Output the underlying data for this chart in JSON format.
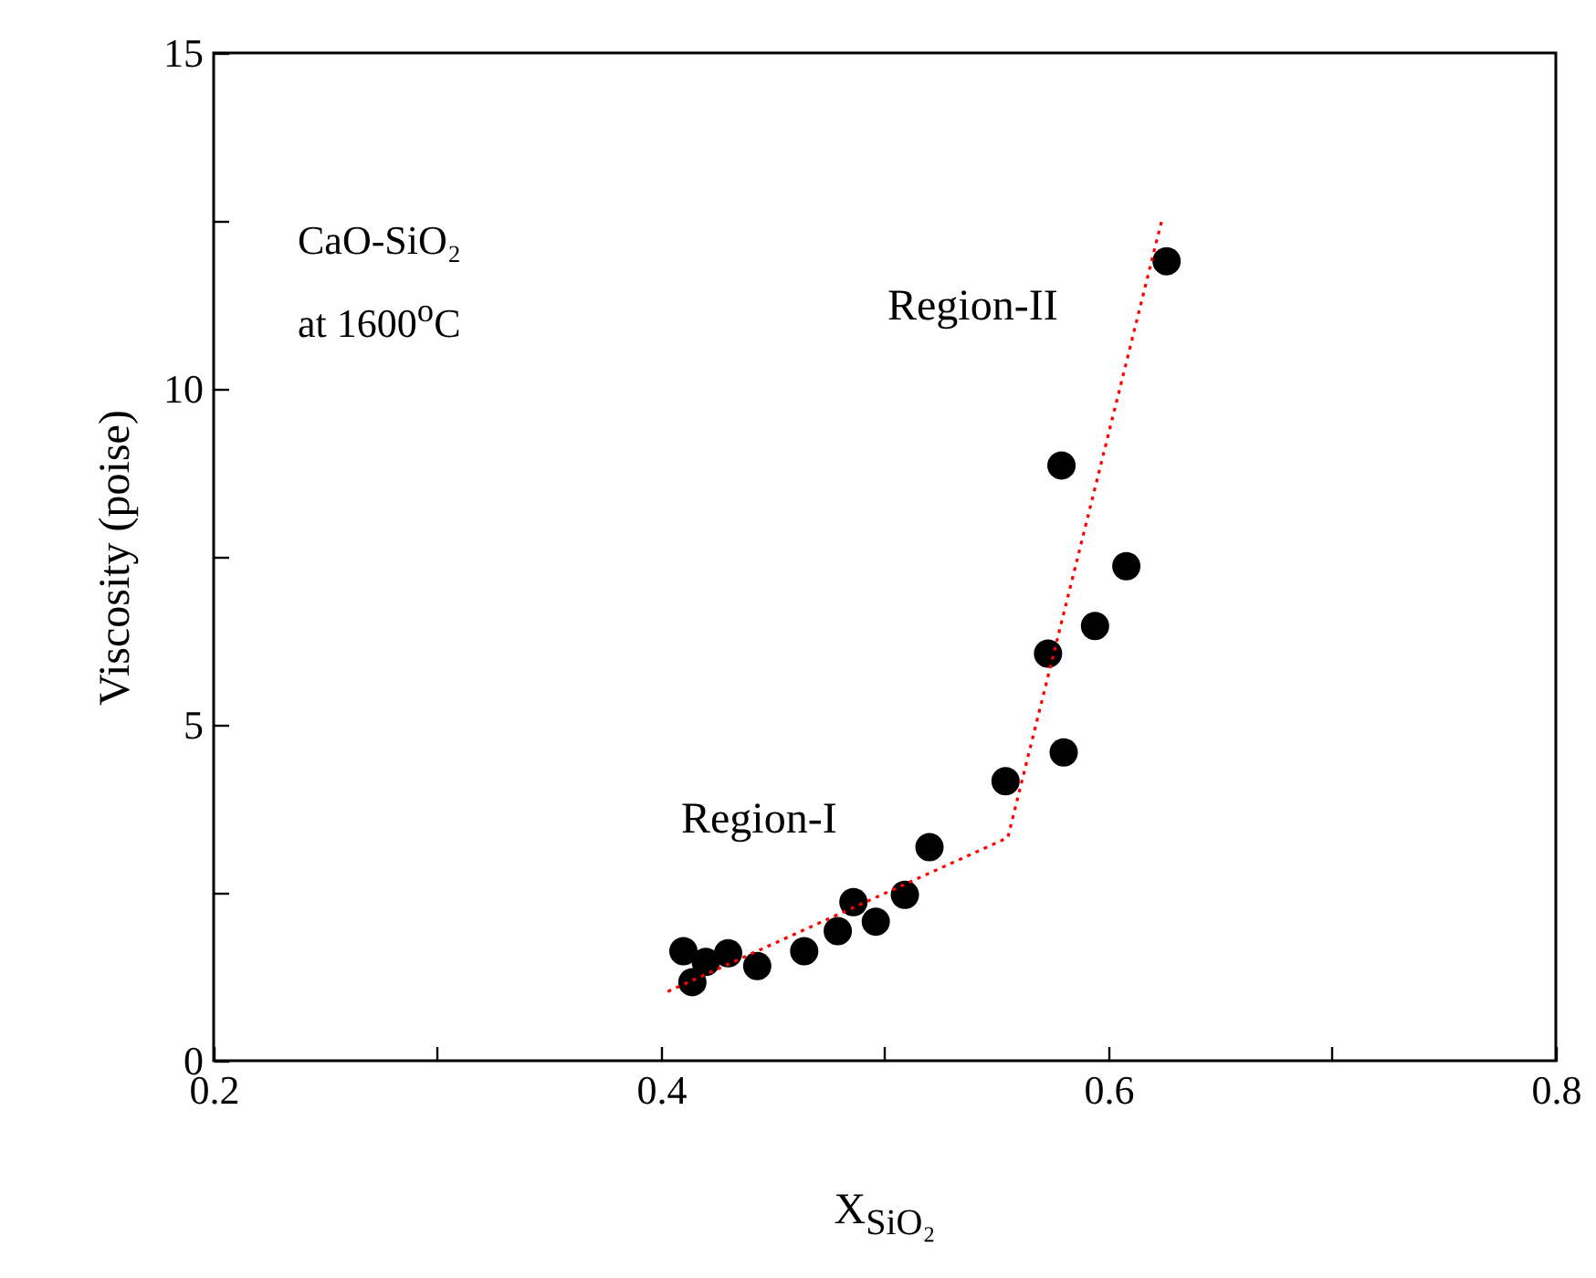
{
  "chart_data": {
    "type": "scatter",
    "xlabel": "X$_{SiO₂}$",
    "ylabel": "Viscosity (poise)",
    "xlim": [
      0.2,
      0.8
    ],
    "ylim": [
      0,
      15
    ],
    "xticks": [
      0.2,
      {
        "value": 0.3,
        "label": null
      },
      0.4,
      {
        "value": 0.5,
        "label": null
      },
      0.6,
      {
        "value": 0.7,
        "label": null
      },
      0.8
    ],
    "yticks": [
      0,
      {
        "value": 2.5,
        "label": null
      },
      5,
      {
        "value": 7.5,
        "label": null
      },
      10,
      {
        "value": 12.5,
        "label": null
      },
      15
    ],
    "series": [
      {
        "marker": "circle",
        "color": "#000000",
        "x": [
          0.41,
          0.414,
          0.42,
          0.43,
          0.443,
          0.464,
          0.479,
          0.486,
          0.496,
          0.509,
          0.52,
          0.554,
          0.573,
          0.58,
          0.579,
          0.594,
          0.608,
          0.626
        ],
        "values": [
          1.63,
          1.17,
          1.47,
          1.6,
          1.41,
          1.63,
          1.93,
          2.36,
          2.07,
          2.47,
          3.18,
          4.16,
          6.06,
          4.59,
          8.86,
          6.47,
          7.36,
          11.9
        ]
      },
      {
        "type": "line",
        "color": "#ff0000",
        "line_style": "dotted",
        "x": [
          0.403,
          0.555,
          0.624
        ],
        "values": [
          1.03,
          3.32,
          12.53
        ]
      }
    ],
    "annotations": [
      "CaO-SiO₂",
      "at 1600$^{o}$C",
      "Region-I",
      "Region-II"
    ]
  }
}
